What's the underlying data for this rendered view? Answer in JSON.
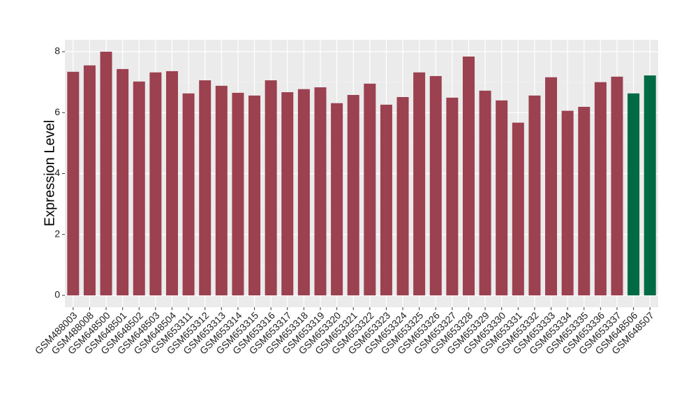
{
  "chart_data": {
    "type": "bar",
    "y_label": "Expression Level",
    "categories": [
      "GSM488003",
      "GSM488008",
      "GSM648500",
      "GSM648501",
      "GSM648502",
      "GSM648503",
      "GSM648504",
      "GSM653311",
      "GSM653312",
      "GSM653313",
      "GSM653314",
      "GSM653315",
      "GSM653316",
      "GSM653317",
      "GSM653318",
      "GSM653319",
      "GSM653320",
      "GSM653321",
      "GSM653322",
      "GSM653323",
      "GSM653324",
      "GSM653325",
      "GSM653326",
      "GSM653327",
      "GSM653328",
      "GSM653329",
      "GSM653330",
      "GSM653331",
      "GSM653332",
      "GSM653333",
      "GSM653334",
      "GSM653335",
      "GSM653336",
      "GSM653337",
      "GSM648506",
      "GSM648507"
    ],
    "values": [
      7.34,
      7.55,
      8.0,
      7.43,
      7.02,
      7.32,
      7.36,
      6.63,
      7.06,
      6.88,
      6.65,
      6.56,
      7.06,
      6.67,
      6.77,
      6.83,
      6.31,
      6.58,
      6.95,
      6.26,
      6.51,
      7.32,
      7.2,
      6.49,
      7.84,
      6.72,
      6.4,
      5.67,
      6.56,
      7.16,
      6.06,
      6.19,
      7.0,
      7.18,
      6.63,
      7.22
    ],
    "colors": [
      "#9b4150",
      "#9b4150",
      "#9b4150",
      "#9b4150",
      "#9b4150",
      "#9b4150",
      "#9b4150",
      "#9b4150",
      "#9b4150",
      "#9b4150",
      "#9b4150",
      "#9b4150",
      "#9b4150",
      "#9b4150",
      "#9b4150",
      "#9b4150",
      "#9b4150",
      "#9b4150",
      "#9b4150",
      "#9b4150",
      "#9b4150",
      "#9b4150",
      "#9b4150",
      "#9b4150",
      "#9b4150",
      "#9b4150",
      "#9b4150",
      "#9b4150",
      "#9b4150",
      "#9b4150",
      "#9b4150",
      "#9b4150",
      "#9b4150",
      "#9b4150",
      "#006a45",
      "#006a45"
    ],
    "ylim": [
      -0.39,
      8.39
    ],
    "yticks": [
      0,
      2,
      4,
      6,
      8
    ],
    "minor_yticks": [
      1,
      3,
      5,
      7
    ],
    "grid": true
  }
}
